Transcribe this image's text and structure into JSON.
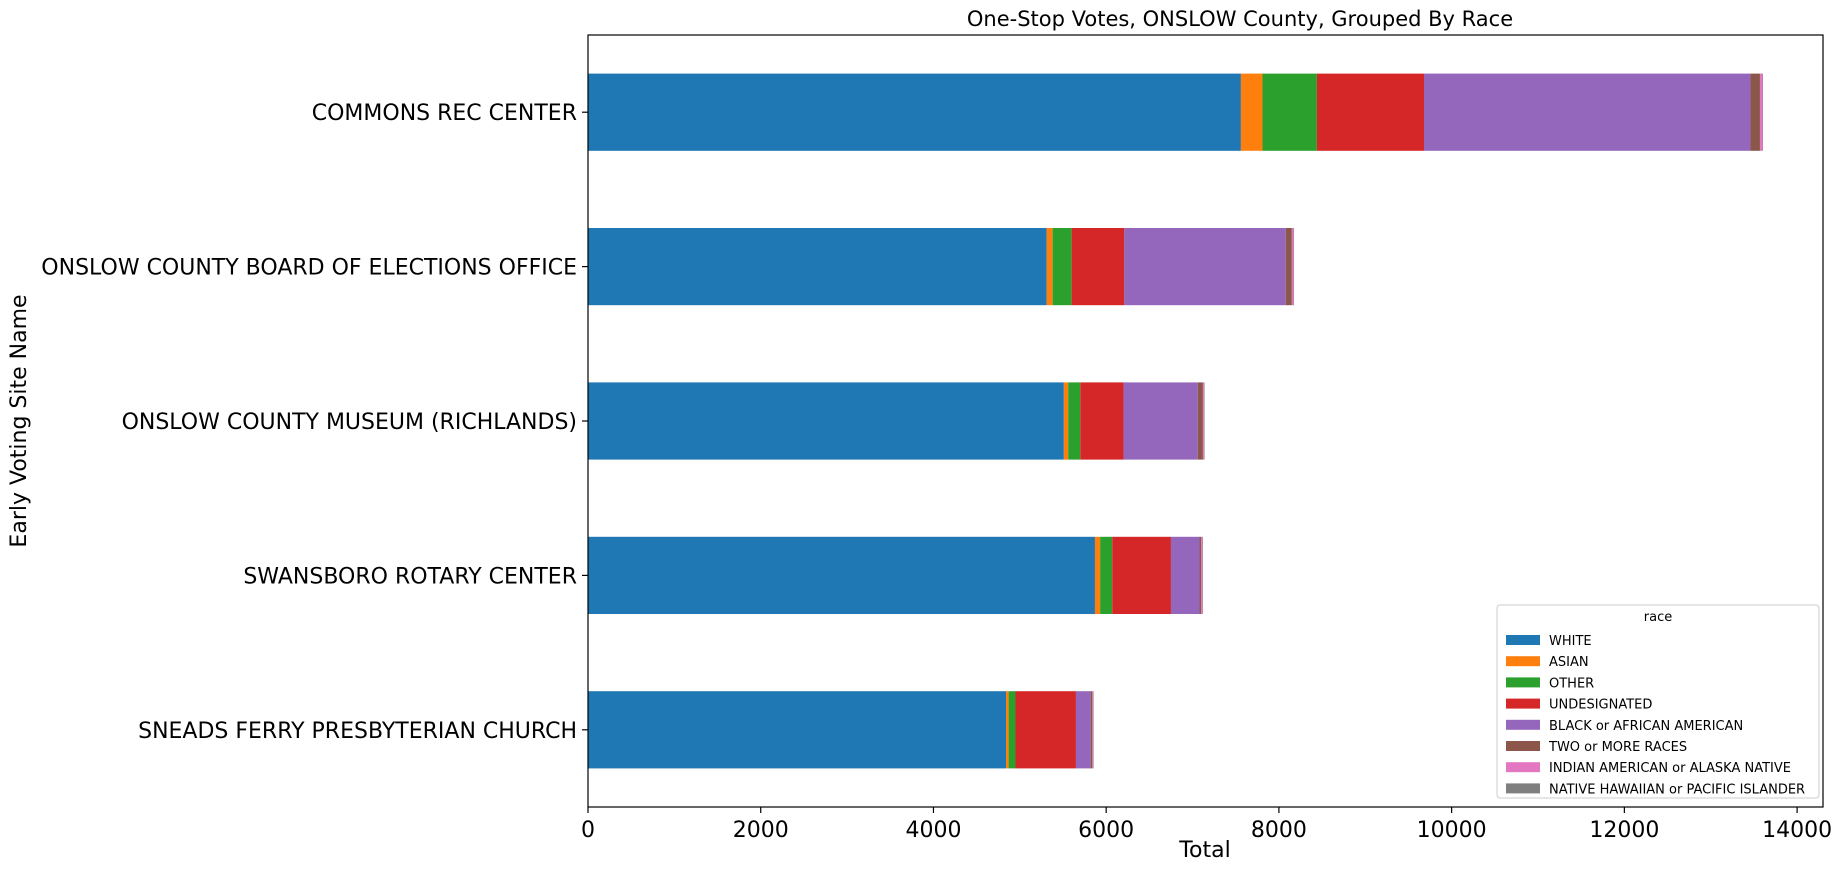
{
  "chart_data": {
    "type": "bar",
    "orientation": "horizontal",
    "stacked": true,
    "title": "One-Stop Votes, ONSLOW County, Grouped By Race",
    "xlabel": "Total",
    "ylabel": "Early Voting Site Name",
    "xlim": [
      0,
      14300
    ],
    "xticks": [
      0,
      2000,
      4000,
      6000,
      8000,
      10000,
      12000,
      14000
    ],
    "categories": [
      "COMMONS REC CENTER",
      "ONSLOW COUNTY BOARD OF ELECTIONS OFFICE",
      "ONSLOW COUNTY MUSEUM (RICHLANDS)",
      "SWANSBORO ROTARY CENTER",
      "SNEADS FERRY PRESBYTERIAN CHURCH"
    ],
    "series": [
      {
        "name": "WHITE",
        "color": "#1f77b4",
        "values": [
          7560,
          5310,
          5510,
          5870,
          4840
        ]
      },
      {
        "name": "ASIAN",
        "color": "#ff7f0e",
        "values": [
          250,
          70,
          50,
          60,
          30
        ]
      },
      {
        "name": "OTHER",
        "color": "#2ca02c",
        "values": [
          630,
          220,
          140,
          140,
          80
        ]
      },
      {
        "name": "UNDESIGNATED",
        "color": "#d62728",
        "values": [
          1240,
          610,
          500,
          680,
          700
        ]
      },
      {
        "name": "BLACK or AFRICAN AMERICAN",
        "color": "#9467bd",
        "values": [
          3780,
          1870,
          860,
          330,
          170
        ]
      },
      {
        "name": "TWO or MORE RACES",
        "color": "#8c564b",
        "values": [
          110,
          70,
          60,
          20,
          20
        ]
      },
      {
        "name": "INDIAN AMERICAN or ALASKA NATIVE",
        "color": "#e377c2",
        "values": [
          30,
          20,
          15,
          15,
          10
        ]
      },
      {
        "name": "NATIVE HAWAIIAN or PACIFIC ISLANDER",
        "color": "#7f7f7f",
        "values": [
          5,
          5,
          5,
          5,
          5
        ]
      }
    ],
    "legend": {
      "title": "race",
      "position": "lower right"
    },
    "grid": false
  }
}
